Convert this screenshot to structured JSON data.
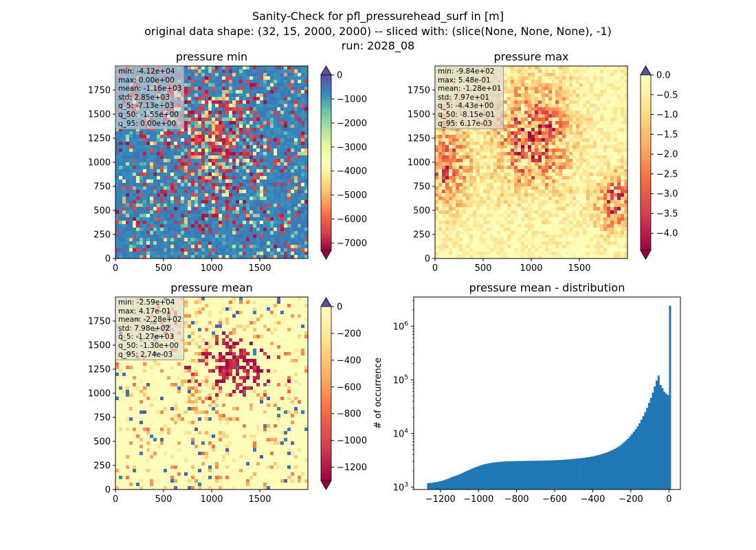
{
  "figure": {
    "suptitle_lines": [
      "Sanity-Check for pfl_pressurehead_surf in [m]",
      "original data shape: (32, 15, 2000, 2000) -- sliced with: (slice(None, None, None), -1)",
      "run: 2028_08"
    ]
  },
  "chart_data": [
    {
      "type": "heatmap",
      "title": "pressure min",
      "colormap": "Spectral",
      "x_ticks": [
        "0",
        "500",
        "1000",
        "1500"
      ],
      "x_tick_values": [
        0,
        500,
        1000,
        1500
      ],
      "y_ticks": [
        "0",
        "250",
        "500",
        "750",
        "1000",
        "1250",
        "1500",
        "1750"
      ],
      "y_tick_values": [
        0,
        250,
        500,
        750,
        1000,
        1250,
        1500,
        1750
      ],
      "xlim": [
        0,
        2000
      ],
      "ylim": [
        0,
        2000
      ],
      "clim": [
        -7300,
        0
      ],
      "colorbar_ticks": [
        "0",
        "−1000",
        "−2000",
        "−3000",
        "−4000",
        "−5000",
        "−6000",
        "−7000"
      ],
      "colorbar_tick_values": [
        0,
        -1000,
        -2000,
        -3000,
        -4000,
        -5000,
        -6000,
        -7000
      ],
      "colorbar_extend": "both (max extension arrow shown in dark violet)",
      "stats": [
        "min: -4.12e+04",
        "max: 0.00e+00",
        "mean: -1.16e+03",
        "std: 2.85e+03",
        "q_5: -7.13e+03",
        "q_50: -1.55e+00",
        "q_95: 0.00e+00"
      ]
    },
    {
      "type": "heatmap",
      "title": "pressure max",
      "colormap": "Spectral",
      "x_ticks": [
        "0",
        "500",
        "1000",
        "1500"
      ],
      "x_tick_values": [
        0,
        500,
        1000,
        1500
      ],
      "y_ticks": [
        "0",
        "250",
        "500",
        "750",
        "1000",
        "1250",
        "1500",
        "1750"
      ],
      "y_tick_values": [
        0,
        250,
        500,
        750,
        1000,
        1250,
        1500,
        1750
      ],
      "xlim": [
        0,
        2000
      ],
      "ylim": [
        0,
        2000
      ],
      "clim": [
        -4.43,
        0
      ],
      "colorbar_ticks": [
        "0.0",
        "−0.5",
        "−1.0",
        "−1.5",
        "−2.0",
        "−2.5",
        "−3.0",
        "−3.5",
        "−4.0"
      ],
      "colorbar_tick_values": [
        0,
        -0.5,
        -1.0,
        -1.5,
        -2.0,
        -2.5,
        -3.0,
        -3.5,
        -4.0
      ],
      "stats": [
        "min: -9.84e+02",
        "max: 5.48e-01",
        "mean: -1.28e+01",
        "std: 7.97e+01",
        "q_5: -4.43e+00",
        "q_50: -8.15e-01",
        "q_95: 6.17e-03"
      ]
    },
    {
      "type": "heatmap",
      "title": "pressure mean",
      "colormap": "Spectral",
      "x_ticks": [
        "0",
        "500",
        "1000",
        "1500"
      ],
      "x_tick_values": [
        0,
        500,
        1000,
        1500
      ],
      "y_ticks": [
        "0",
        "250",
        "500",
        "750",
        "1000",
        "1250",
        "1500",
        "1750"
      ],
      "y_tick_values": [
        0,
        250,
        500,
        750,
        1000,
        1250,
        1500,
        1750
      ],
      "xlim": [
        0,
        2000
      ],
      "ylim": [
        0,
        2000
      ],
      "clim": [
        -1300,
        0
      ],
      "colorbar_ticks": [
        "0",
        "−200",
        "−400",
        "−600",
        "−800",
        "−1000",
        "−1200"
      ],
      "colorbar_tick_values": [
        0,
        -200,
        -400,
        -600,
        -800,
        -1000,
        -1200
      ],
      "stats": [
        "min: -2.59e+04",
        "max: 4.17e-01",
        "mean: -2.28e+02",
        "std: 7.98e+02",
        "q_5: -1.27e+03",
        "q_50: -1.30e+00",
        "q_95: 2.74e-03"
      ]
    },
    {
      "type": "bar",
      "subtype": "histogram",
      "title": "pressure mean - distribution",
      "ylabel": "# of occurrence",
      "xlabel": "",
      "yscale": "log",
      "xlim": [
        -1340,
        60
      ],
      "ylim": [
        900,
        3500000
      ],
      "bar_color": "#1f77b4",
      "x_ticks": [
        "−1200",
        "−1000",
        "−800",
        "−600",
        "−400",
        "−200",
        "0"
      ],
      "x_tick_values": [
        -1200,
        -1000,
        -800,
        -600,
        -400,
        -200,
        0
      ],
      "y_ticks": [
        "10^3",
        "10^4",
        "10^5",
        "10^6"
      ],
      "y_tick_values": [
        1000,
        10000,
        100000,
        1000000
      ],
      "bin_range": [
        -1270,
        0
      ],
      "bin_width": 10,
      "values": [
        1180,
        1200,
        1190,
        1220,
        1230,
        1250,
        1280,
        1300,
        1330,
        1370,
        1410,
        1460,
        1510,
        1560,
        1600,
        1650,
        1700,
        1760,
        1820,
        1900,
        1980,
        2050,
        2120,
        2200,
        2280,
        2350,
        2420,
        2490,
        2560,
        2620,
        2680,
        2730,
        2770,
        2810,
        2850,
        2880,
        2910,
        2940,
        2960,
        2980,
        3000,
        3010,
        3020,
        3030,
        3040,
        3040,
        3050,
        3050,
        3060,
        3060,
        3070,
        3070,
        3080,
        3080,
        3090,
        3090,
        3090,
        3100,
        3100,
        3110,
        3110,
        3120,
        3130,
        3130,
        3140,
        3150,
        3160,
        3170,
        3180,
        3200,
        3210,
        3230,
        3250,
        3270,
        3290,
        3310,
        3340,
        3370,
        3400,
        3430,
        3460,
        3490,
        3520,
        3560,
        3600,
        3640,
        3700,
        3760,
        3830,
        3920,
        4000,
        4100,
        4200,
        4320,
        4450,
        4600,
        4780,
        4950,
        5150,
        5400,
        5700,
        6000,
        6400,
        6900,
        7400,
        8000,
        8800,
        9700,
        10800,
        12000,
        13500,
        15500,
        18000,
        21000,
        25000,
        30000,
        37000,
        46000,
        58000,
        75000,
        97000,
        120000,
        80000,
        70000,
        60000,
        55000,
        52000,
        2400000
      ]
    }
  ]
}
